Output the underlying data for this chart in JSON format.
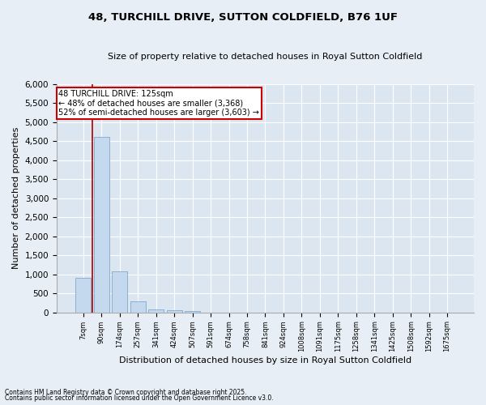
{
  "title": "48, TURCHILL DRIVE, SUTTON COLDFIELD, B76 1UF",
  "subtitle": "Size of property relative to detached houses in Royal Sutton Coldfield",
  "xlabel": "Distribution of detached houses by size in Royal Sutton Coldfield",
  "ylabel": "Number of detached properties",
  "bar_color": "#c5d9ee",
  "bar_edgecolor": "#7fa9cc",
  "background_color": "#dce6f1",
  "grid_color": "#ffffff",
  "fig_facecolor": "#e8eef5",
  "categories": [
    "7sqm",
    "90sqm",
    "174sqm",
    "257sqm",
    "341sqm",
    "424sqm",
    "507sqm",
    "591sqm",
    "674sqm",
    "758sqm",
    "841sqm",
    "924sqm",
    "1008sqm",
    "1091sqm",
    "1175sqm",
    "1258sqm",
    "1341sqm",
    "1425sqm",
    "1508sqm",
    "1592sqm",
    "1675sqm"
  ],
  "values": [
    900,
    4600,
    1080,
    290,
    80,
    55,
    30,
    0,
    0,
    0,
    0,
    0,
    0,
    0,
    0,
    0,
    0,
    0,
    0,
    0,
    0
  ],
  "ylim": [
    0,
    6000
  ],
  "yticks": [
    0,
    500,
    1000,
    1500,
    2000,
    2500,
    3000,
    3500,
    4000,
    4500,
    5000,
    5500,
    6000
  ],
  "vline_color": "#aa0000",
  "annotation_title": "48 TURCHILL DRIVE: 125sqm",
  "annotation_line1": "← 48% of detached houses are smaller (3,368)",
  "annotation_line2": "52% of semi-detached houses are larger (3,603) →",
  "annotation_box_edgecolor": "#cc0000",
  "footnote1": "Contains HM Land Registry data © Crown copyright and database right 2025.",
  "footnote2": "Contains public sector information licensed under the Open Government Licence v3.0."
}
